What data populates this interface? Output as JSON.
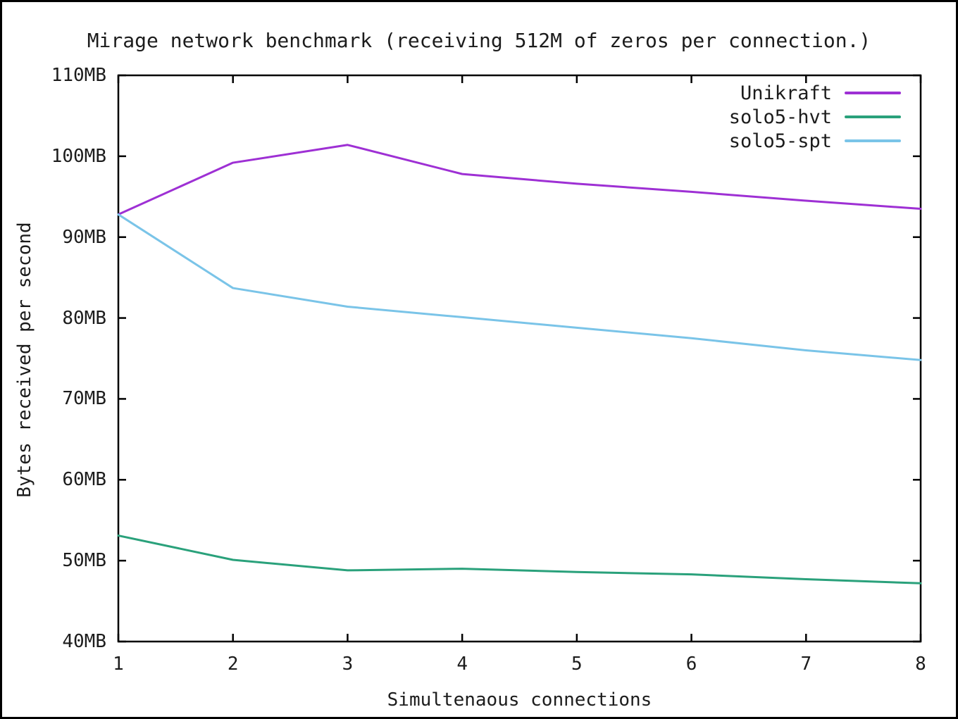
{
  "chart_data": {
    "type": "line",
    "title": "Mirage network benchmark (receiving 512M of zeros per connection.)",
    "xlabel": "Simultenaous connections",
    "ylabel": "Bytes received per second",
    "x": [
      1,
      2,
      3,
      4,
      5,
      6,
      7,
      8
    ],
    "xlim": [
      1,
      8
    ],
    "ylim": [
      40,
      110
    ],
    "grid": false,
    "legend_position": "inside-top-right",
    "xticks": [
      {
        "value": 1,
        "label": "1"
      },
      {
        "value": 2,
        "label": "2"
      },
      {
        "value": 3,
        "label": "3"
      },
      {
        "value": 4,
        "label": "4"
      },
      {
        "value": 5,
        "label": "5"
      },
      {
        "value": 6,
        "label": "6"
      },
      {
        "value": 7,
        "label": "7"
      },
      {
        "value": 8,
        "label": "8"
      }
    ],
    "yticks": [
      {
        "value": 40,
        "label": "40MB"
      },
      {
        "value": 50,
        "label": "50MB"
      },
      {
        "value": 60,
        "label": "60MB"
      },
      {
        "value": 70,
        "label": "70MB"
      },
      {
        "value": 80,
        "label": "80MB"
      },
      {
        "value": 90,
        "label": "90MB"
      },
      {
        "value": 100,
        "label": "100MB"
      },
      {
        "value": 110,
        "label": "110MB"
      }
    ],
    "series": [
      {
        "name": "Unikraft",
        "color": "#9e30d4",
        "unit": "MB",
        "values": [
          92.8,
          99.2,
          101.4,
          97.8,
          96.6,
          95.6,
          94.5,
          93.5
        ]
      },
      {
        "name": "solo5-hvt",
        "color": "#2aa17b",
        "unit": "MB",
        "values": [
          53.1,
          50.1,
          48.8,
          49.0,
          48.6,
          48.3,
          47.7,
          47.2
        ]
      },
      {
        "name": "solo5-spt",
        "color": "#7ac4e8",
        "unit": "MB",
        "values": [
          92.8,
          83.7,
          81.4,
          80.1,
          78.8,
          77.5,
          76.0,
          74.8
        ]
      }
    ],
    "frame_color": "#000000",
    "background_color": "#ffffff"
  }
}
